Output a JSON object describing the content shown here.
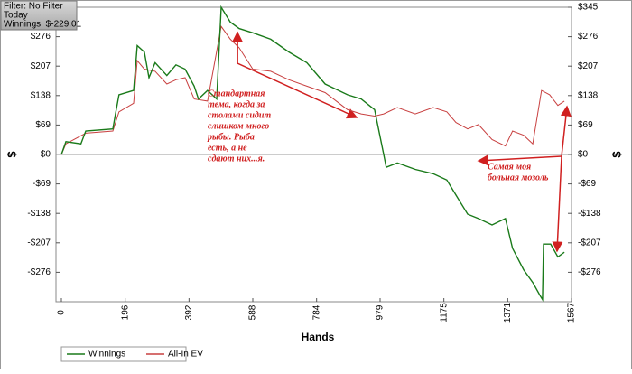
{
  "info": {
    "lines": [
      "Filter: No Filter",
      "Today",
      "Winnings: $-229.01"
    ]
  },
  "chart_data": {
    "type": "line",
    "xlabel": "Hands",
    "ylabel": "$",
    "y2label": "$",
    "xlim": [
      0,
      1567
    ],
    "xticks": [
      0,
      196,
      392,
      588,
      784,
      979,
      1175,
      1371,
      1567
    ],
    "ylim": [
      -345,
      345
    ],
    "yticks": [
      {
        "value": -276,
        "label": "-$276"
      },
      {
        "value": -207,
        "label": "-$207"
      },
      {
        "value": -138,
        "label": "-$138"
      },
      {
        "value": -69,
        "label": "-$69"
      },
      {
        "value": 0,
        "label": "$0"
      },
      {
        "value": 69,
        "label": "$69"
      },
      {
        "value": 138,
        "label": "$138"
      },
      {
        "value": 207,
        "label": "$207"
      },
      {
        "value": 276,
        "label": "$276"
      }
    ],
    "y2lim": [
      -345,
      345
    ],
    "y2ticks": [
      {
        "value": -276,
        "label": "-$276"
      },
      {
        "value": -207,
        "label": "-$207"
      },
      {
        "value": -138,
        "label": "-$138"
      },
      {
        "value": -69,
        "label": "-$69"
      },
      {
        "value": 0,
        "label": "$0"
      },
      {
        "value": 69,
        "label": "$69"
      },
      {
        "value": 138,
        "label": "$138"
      },
      {
        "value": 207,
        "label": "$207"
      },
      {
        "value": 276,
        "label": "$276"
      },
      {
        "value": 345,
        "label": "$345"
      }
    ],
    "series": [
      {
        "name": "Winnings",
        "color": "#1a7a1a",
        "x": [
          0,
          14,
          60,
          75,
          158,
          166,
          177,
          222,
          233,
          255,
          269,
          288,
          324,
          352,
          380,
          408,
          421,
          449,
          477,
          491,
          519,
          546,
          588,
          643,
          699,
          754,
          810,
          879,
          921,
          962,
          990,
          998,
          1032,
          1087,
          1142,
          1184,
          1212,
          1248,
          1281,
          1323,
          1364,
          1386,
          1420,
          1448,
          1470,
          1478,
          1481,
          1503,
          1525,
          1545
        ],
        "values": [
          0,
          30,
          25,
          55,
          60,
          95,
          140,
          150,
          255,
          240,
          180,
          215,
          185,
          210,
          200,
          160,
          130,
          150,
          130,
          345,
          310,
          295,
          285,
          270,
          240,
          215,
          165,
          140,
          130,
          105,
          0,
          -30,
          -20,
          -35,
          -45,
          -60,
          -95,
          -140,
          -150,
          -165,
          -150,
          -220,
          -270,
          -300,
          -330,
          -340,
          -210,
          -210,
          -240,
          -229.01
        ]
      },
      {
        "name": "All-In EV",
        "color": "#c84040",
        "x": [
          0,
          14,
          75,
          158,
          177,
          222,
          233,
          255,
          288,
          324,
          352,
          380,
          408,
          449,
          491,
          519,
          546,
          588,
          643,
          699,
          754,
          810,
          879,
          921,
          962,
          990,
          1032,
          1087,
          1142,
          1184,
          1212,
          1248,
          1281,
          1323,
          1364,
          1386,
          1420,
          1448,
          1475,
          1500,
          1525,
          1545
        ],
        "values": [
          0,
          25,
          50,
          55,
          100,
          120,
          220,
          200,
          195,
          165,
          175,
          180,
          130,
          125,
          300,
          270,
          250,
          200,
          195,
          175,
          160,
          145,
          105,
          95,
          90,
          95,
          110,
          95,
          110,
          100,
          75,
          60,
          70,
          35,
          20,
          55,
          45,
          25,
          150,
          140,
          115,
          125
        ]
      }
    ],
    "annotations": [
      {
        "lines": [
          "Стандартная",
          "тема, когда за",
          "столами сидит",
          "слишком много",
          "рыбы. Рыба",
          "есть, а не",
          "сдают них...я."
        ]
      },
      {
        "lines": [
          "Самая моя",
          "больная мозоль"
        ]
      }
    ]
  }
}
